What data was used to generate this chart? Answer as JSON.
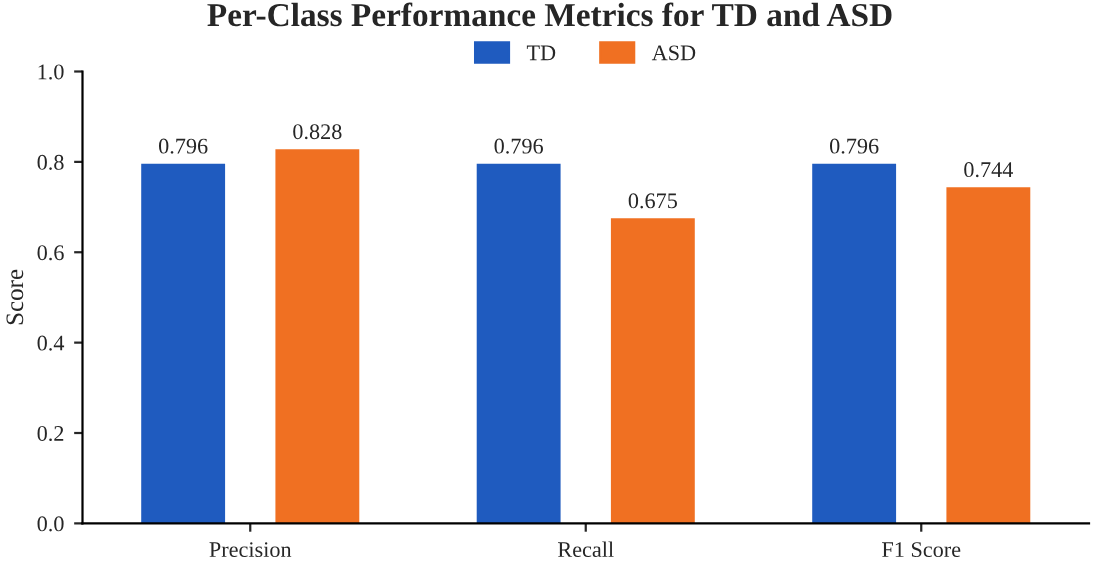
{
  "chart_data": {
    "type": "bar",
    "title": "Per-Class Performance Metrics for TD and ASD",
    "ylabel": "Score",
    "categories": [
      "Precision",
      "Recall",
      "F1 Score"
    ],
    "series": [
      {
        "name": "TD",
        "color": "#1f5bbf",
        "values": [
          0.796,
          0.796,
          0.796
        ]
      },
      {
        "name": "ASD",
        "color": "#f07022",
        "values": [
          0.828,
          0.675,
          0.744
        ]
      }
    ],
    "ylim": [
      0,
      1.0
    ],
    "yticks": [
      {
        "value": 0,
        "label": "0.0"
      },
      {
        "value": 0.2,
        "label": "0.2"
      },
      {
        "value": 0.4,
        "label": "0.4"
      },
      {
        "value": 0.6,
        "label": "0.6"
      },
      {
        "value": 0.8,
        "label": "0.8"
      },
      {
        "value": 1.0,
        "label": "1.0"
      }
    ],
    "data_labels": true,
    "grid": false,
    "legend": "top"
  }
}
